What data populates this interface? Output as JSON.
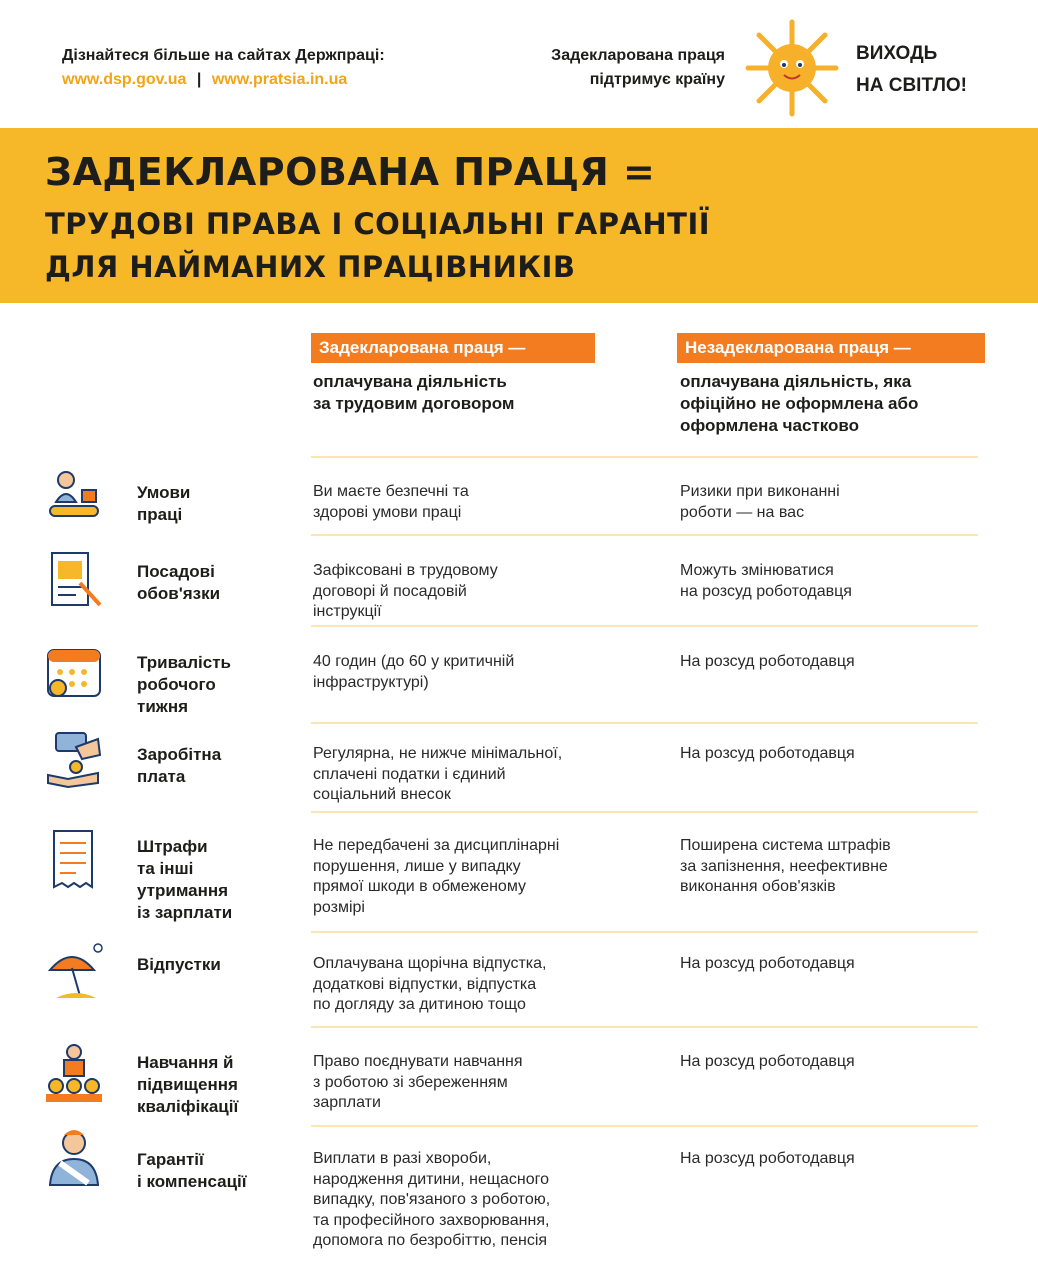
{
  "header": {
    "learn_more": "Дізнайтеся більше на сайтах Держпраці:",
    "link1": "www.dsp.gov.ua",
    "link_sep": "|",
    "link2": "www.pratsia.in.ua",
    "slogan_line1": "Задекларована праця",
    "slogan_line2": "підтримує країну",
    "campaign_line1": "ВИХОДЬ",
    "campaign_line2": "НА СВІТЛО!"
  },
  "title": {
    "line1": "ЗАДЕКЛАРОВАНА ПРАЦЯ =",
    "line2": "ТРУДОВІ ПРАВА І СОЦІАЛЬНІ ГАРАНТІЇ",
    "line3": "ДЛЯ НАЙМАНИХ ПРАЦІВНИКІВ"
  },
  "columns": [
    {
      "label": "Задекларована праця —",
      "sub": "оплачувана діяльність\nза трудовим договором"
    },
    {
      "label": "Незадекларована праця —",
      "sub": "оплачувана діяльність, яка\nофіційно не оформлена або\nоформлена частково"
    }
  ],
  "colors": {
    "accent_yellow": "#f6b728",
    "accent_orange": "#f47c20",
    "link": "#f2a516"
  },
  "rows": [
    {
      "icon": "worker-conveyor-icon",
      "label": "Умови\nпраці",
      "declared": "Ви маєте безпечні та\nздорові умови праці",
      "undeclared": "Ризики при виконанні\nроботи — на вас"
    },
    {
      "icon": "document-pen-icon",
      "label": "Посадові\nобов'язки",
      "declared": "Зафіксовані в трудовому\nдоговорі й посадовій\nінструкції",
      "undeclared": "Можуть змінюватися\nна розсуд роботодавця"
    },
    {
      "icon": "calendar-icon",
      "label": "Тривалість\nробочого\nтижня",
      "declared": "40 годин (до 60 у критичній\nінфраструктурі)",
      "undeclared": "На розсуд роботодавця"
    },
    {
      "icon": "hands-money-icon",
      "label": "Заробітна\nплата",
      "declared": "Регулярна, не нижче мінімальної,\nсплачені податки і єдиний\nсоціальний внесок",
      "undeclared": "На розсуд роботодавця"
    },
    {
      "icon": "receipt-icon",
      "label": "Штрафи\nта інші\nутримання\nіз зарплати",
      "declared": "Не передбачені за дисциплінарні\nпорушення, лише у випадку\nпрямої шкоди в обмеженому\nрозмірі",
      "undeclared": "Поширена система штрафів\nза запізнення, неефективне\nвиконання обов'язків"
    },
    {
      "icon": "beach-umbrella-icon",
      "label": "Відпустки",
      "declared": "Оплачувана щорічна відпустка,\nдодаткові відпустки, відпустка\nпо догляду за дитиною тощо",
      "undeclared": "На розсуд роботодавця"
    },
    {
      "icon": "lecture-icon",
      "label": "Навчання й\nпідвищення\nкваліфікації",
      "declared": "Право поєднувати навчання\nз роботою зі збереженням\nзарплати",
      "undeclared": "На розсуд роботодавця"
    },
    {
      "icon": "injured-worker-icon",
      "label": "Гарантії\nі компенсації",
      "declared": "Виплати в разі хвороби,\nнародження дитини, нещасного\nвипадку, пов'язаного з роботою,\nта професійного захворювання,\nдопомога по безробіттю, пенсія",
      "undeclared": "На розсуд роботодавця"
    }
  ]
}
